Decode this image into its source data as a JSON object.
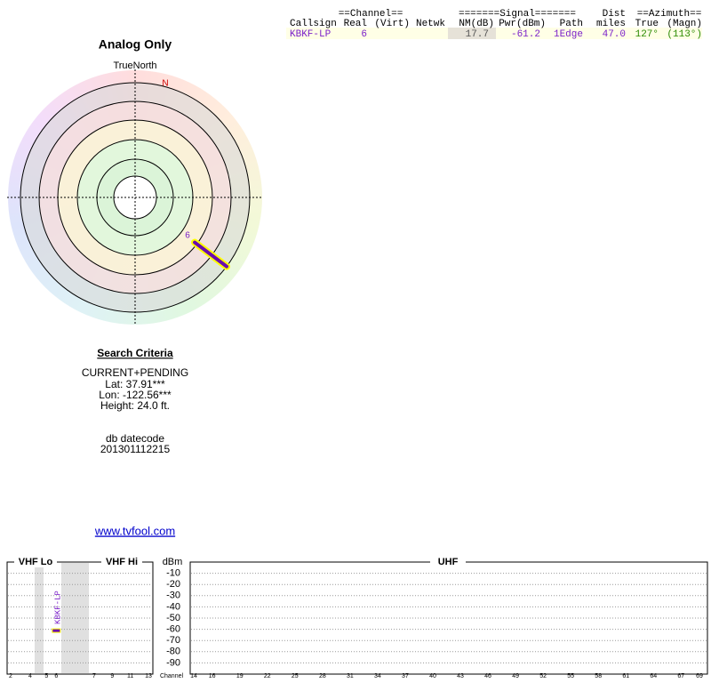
{
  "table": {
    "group_headers": [
      "==Channel==",
      "=======Signal=======",
      "Dist",
      "==Azimuth=="
    ],
    "headers": [
      "Callsign",
      "Real",
      "(Virt)",
      "Netwk",
      "NM(dB)",
      "Pwr(dBm)",
      "Path",
      "miles",
      "True",
      "(Magn)"
    ],
    "rows": [
      {
        "callsign": "KBKF-LP",
        "real": 6,
        "nm": 17.7,
        "pwr": -61.2,
        "path": "1Edge",
        "dist": {
          "value": 47,
          "label": "47.0"
        },
        "true": {
          "value": 127,
          "label": "127°"
        },
        "magn": {
          "value": 113,
          "label": "(113°)"
        }
      }
    ]
  },
  "radar": {
    "title": "Analog Only",
    "reference": "TrueNorth",
    "north": "N"
  },
  "search": {
    "title": "Search Criteria",
    "lines": [
      "CURRENT+PENDING",
      "Lat: 37.91***",
      "Lon: -122.56***",
      "Height: 24.0 ft."
    ]
  },
  "datecode": {
    "label": "db datecode",
    "value": "201301112215"
  },
  "link": "www.tvfool.com",
  "spectrum": {
    "bands": [
      "VHF Lo",
      "VHF Hi",
      "UHF"
    ],
    "axis_label": "dBm",
    "ylim": [
      0,
      -100
    ],
    "yticks": [
      -10,
      -20,
      -30,
      -40,
      -50,
      -60,
      -70,
      -80,
      -90
    ],
    "channel_label": "Channel",
    "vhf_lo_channels": [
      2,
      4,
      5,
      6
    ],
    "vhf_hi_channels": [
      7,
      9,
      11,
      13
    ],
    "uhf_channels": [
      14,
      16,
      19,
      22,
      25,
      28,
      31,
      34,
      37,
      40,
      43,
      46,
      49,
      52,
      55,
      58,
      61,
      64,
      67,
      69
    ]
  }
}
